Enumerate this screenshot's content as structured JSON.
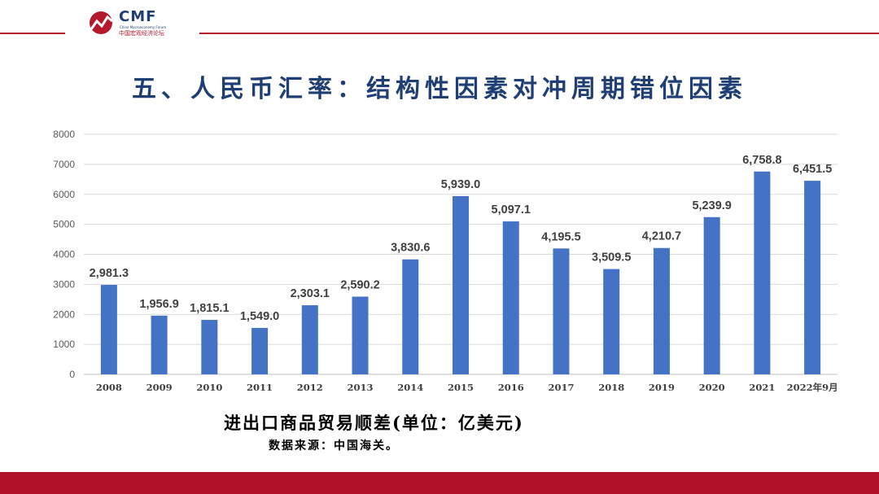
{
  "logo": {
    "brand": "CMF",
    "english": "China Macroeconomy Forum",
    "chinese": "中国宏观经济论坛"
  },
  "slide": {
    "title": "五、人民币汇率：结构性因素对冲周期错位因素",
    "caption": "进出口商品贸易顺差(单位：亿美元)",
    "source": "数据来源：中国海关。"
  },
  "colors": {
    "accent_red": "#b5182b",
    "title_blue": "#1f3e73",
    "bar": "#4472c4",
    "highlight_label": "#ff0000"
  },
  "chart_data": {
    "type": "bar",
    "categories": [
      "2008",
      "2009",
      "2010",
      "2011",
      "2012",
      "2013",
      "2014",
      "2015",
      "2016",
      "2017",
      "2018",
      "2019",
      "2020",
      "2021",
      "2022年9月"
    ],
    "values": [
      2981.3,
      1956.9,
      1815.1,
      1549.0,
      2303.1,
      2590.2,
      3830.6,
      5939.0,
      5097.1,
      4195.5,
      3509.5,
      4210.7,
      5239.9,
      6758.8,
      6451.5
    ],
    "value_labels": [
      "2,981.3",
      "1,956.9",
      "1,815.1",
      "1,549.0",
      "2,303.1",
      "2,590.2",
      "3,830.6",
      "5,939.0",
      "5,097.1",
      "4,195.5",
      "3,509.5",
      "4,210.7",
      "5,239.9",
      "6,758.8",
      "6,451.5"
    ],
    "yticks": [
      "0",
      "1000",
      "2000",
      "3000",
      "4000",
      "5000",
      "6000",
      "7000",
      "8000"
    ],
    "ylim": [
      0,
      8000
    ],
    "grid": true,
    "highlight_index": 14
  }
}
